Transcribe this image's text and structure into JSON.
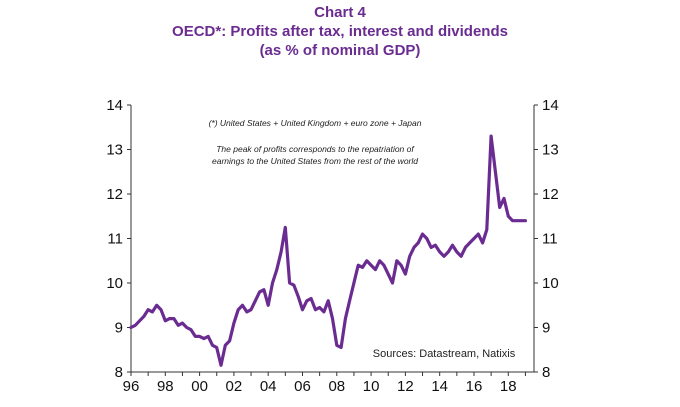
{
  "header": {
    "title": "Chart 4",
    "subtitle_line1": "OECD*:  Profits after tax, interest and dividends",
    "subtitle_line2": "(as % of nominal GDP)"
  },
  "annotations": {
    "footnote": "(*) United States + United Kingdom + euro zone + Japan",
    "peak_note_line1": "The peak of profits corresponds to the repatriation of",
    "peak_note_line2": "earnings to the United States from the rest of the world",
    "source": "Sources:  Datastream,  Natixis"
  },
  "colors": {
    "series": "#6b2c91",
    "title": "#6b2c91",
    "axis": "#333333"
  },
  "chart_data": {
    "type": "line",
    "title": "Chart 4",
    "subtitle": "OECD*: Profits after tax, interest and dividends (as % of nominal GDP)",
    "xlabel": "",
    "ylabel": "",
    "xlim": [
      1996,
      2019.5
    ],
    "ylim": [
      8,
      14
    ],
    "x_tick_labels": [
      "96",
      "98",
      "00",
      "02",
      "04",
      "06",
      "08",
      "10",
      "12",
      "14",
      "16",
      "18"
    ],
    "x_tick_values": [
      1996,
      1998,
      2000,
      2002,
      2004,
      2006,
      2008,
      2010,
      2012,
      2014,
      2016,
      2018
    ],
    "y_ticks_left": [
      8,
      9,
      10,
      11,
      12,
      13,
      14
    ],
    "y_ticks_right": [
      8,
      9,
      10,
      11,
      12,
      13,
      14
    ],
    "grid": false,
    "series": [
      {
        "name": "OECD profits after tax, interest and dividends (% of GDP)",
        "x": [
          1996.0,
          1996.25,
          1996.5,
          1996.75,
          1997.0,
          1997.25,
          1997.5,
          1997.75,
          1998.0,
          1998.25,
          1998.5,
          1998.75,
          1999.0,
          1999.25,
          1999.5,
          1999.75,
          2000.0,
          2000.25,
          2000.5,
          2000.75,
          2001.0,
          2001.25,
          2001.5,
          2001.75,
          2002.0,
          2002.25,
          2002.5,
          2002.75,
          2003.0,
          2003.25,
          2003.5,
          2003.75,
          2004.0,
          2004.25,
          2004.5,
          2004.75,
          2005.0,
          2005.25,
          2005.5,
          2005.75,
          2006.0,
          2006.25,
          2006.5,
          2006.75,
          2007.0,
          2007.25,
          2007.5,
          2007.75,
          2008.0,
          2008.25,
          2008.5,
          2008.75,
          2009.0,
          2009.25,
          2009.5,
          2009.75,
          2010.0,
          2010.25,
          2010.5,
          2010.75,
          2011.0,
          2011.25,
          2011.5,
          2011.75,
          2012.0,
          2012.25,
          2012.5,
          2012.75,
          2013.0,
          2013.25,
          2013.5,
          2013.75,
          2014.0,
          2014.25,
          2014.5,
          2014.75,
          2015.0,
          2015.25,
          2015.5,
          2015.75,
          2016.0,
          2016.25,
          2016.5,
          2016.75,
          2017.0,
          2017.25,
          2017.5,
          2017.75,
          2018.0,
          2018.25,
          2018.5,
          2018.75,
          2019.0
        ],
        "values": [
          9.0,
          9.05,
          9.15,
          9.25,
          9.4,
          9.35,
          9.5,
          9.4,
          9.15,
          9.2,
          9.2,
          9.05,
          9.1,
          9.0,
          8.95,
          8.8,
          8.8,
          8.75,
          8.8,
          8.6,
          8.55,
          8.15,
          8.6,
          8.7,
          9.1,
          9.4,
          9.5,
          9.35,
          9.4,
          9.6,
          9.8,
          9.85,
          9.5,
          10.0,
          10.3,
          10.7,
          11.25,
          10.0,
          9.95,
          9.7,
          9.4,
          9.6,
          9.65,
          9.4,
          9.45,
          9.35,
          9.6,
          9.2,
          8.6,
          8.55,
          9.2,
          9.6,
          10.0,
          10.4,
          10.35,
          10.5,
          10.4,
          10.3,
          10.5,
          10.4,
          10.2,
          10.0,
          10.5,
          10.4,
          10.2,
          10.6,
          10.8,
          10.9,
          11.1,
          11.0,
          10.8,
          10.85,
          10.7,
          10.6,
          10.7,
          10.85,
          10.7,
          10.6,
          10.8,
          10.9,
          11.0,
          11.1,
          10.9,
          11.2,
          13.3,
          12.5,
          11.7,
          11.9,
          11.5,
          11.4,
          11.4,
          11.4,
          11.4
        ]
      }
    ]
  }
}
